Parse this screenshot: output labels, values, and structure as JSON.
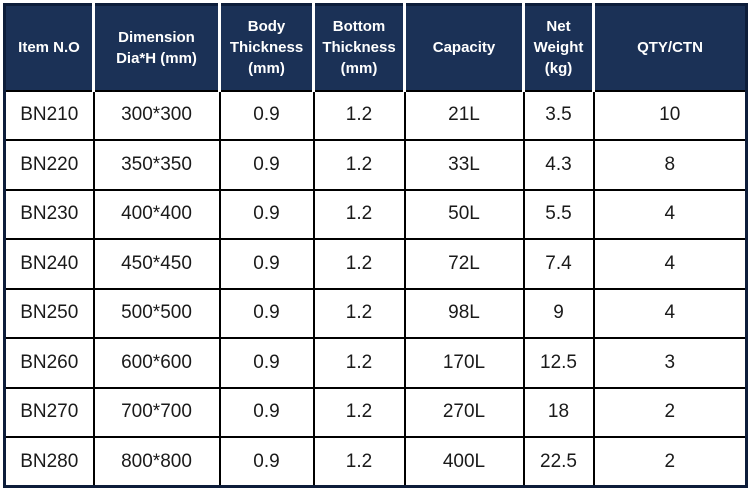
{
  "colors": {
    "header_bg": "#1b3156",
    "header_text": "#ffffff",
    "grid": "#000000",
    "body_text": "#1a1a1a",
    "page_bg": "#ffffff"
  },
  "table": {
    "columns": [
      {
        "key": "item_no",
        "label": "Item N.O"
      },
      {
        "key": "dimension",
        "label": "Dimension\nDia*H (mm)"
      },
      {
        "key": "body_thickness",
        "label": "Body\nThickness\n(mm)"
      },
      {
        "key": "bottom_thickness",
        "label": "Bottom\nThickness\n(mm)"
      },
      {
        "key": "capacity",
        "label": "Capacity"
      },
      {
        "key": "net_weight",
        "label": "Net\nWeight\n(kg)"
      },
      {
        "key": "qty_ctn",
        "label": "QTY/CTN"
      }
    ],
    "rows": [
      [
        "BN210",
        "300*300",
        "0.9",
        "1.2",
        "21L",
        "3.5",
        "10"
      ],
      [
        "BN220",
        "350*350",
        "0.9",
        "1.2",
        "33L",
        "4.3",
        "8"
      ],
      [
        "BN230",
        "400*400",
        "0.9",
        "1.2",
        "50L",
        "5.5",
        "4"
      ],
      [
        "BN240",
        "450*450",
        "0.9",
        "1.2",
        "72L",
        "7.4",
        "4"
      ],
      [
        "BN250",
        "500*500",
        "0.9",
        "1.2",
        "98L",
        "9",
        "4"
      ],
      [
        "BN260",
        "600*600",
        "0.9",
        "1.2",
        "170L",
        "12.5",
        "3"
      ],
      [
        "BN270",
        "700*700",
        "0.9",
        "1.2",
        "270L",
        "18",
        "2"
      ],
      [
        "BN280",
        "800*800",
        "0.9",
        "1.2",
        "400L",
        "22.5",
        "2"
      ]
    ]
  }
}
